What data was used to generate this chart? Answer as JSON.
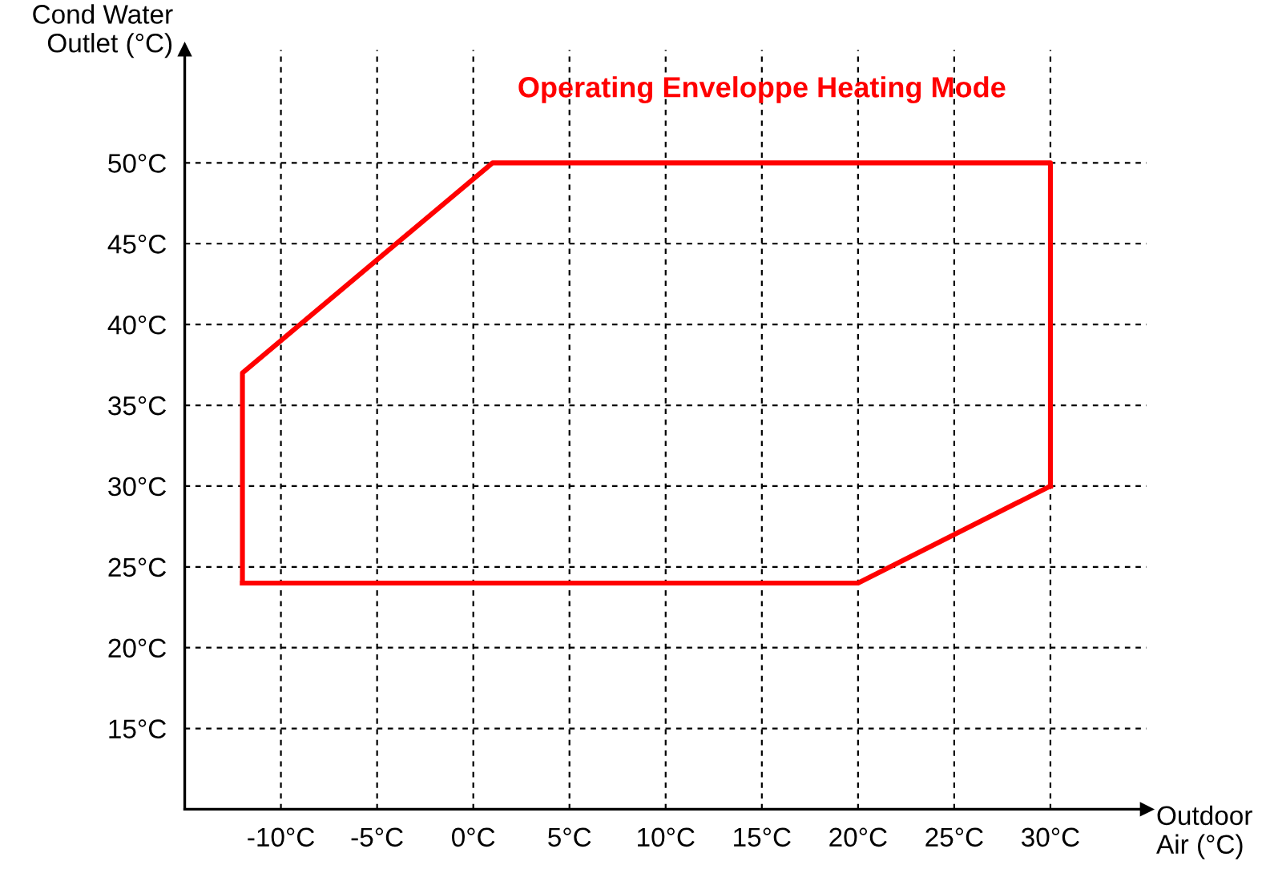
{
  "chart_data": {
    "type": "line",
    "title": "Operating Enveloppe Heating Mode",
    "xlabel": "Outdoor\nAir (°C)",
    "ylabel": "Cond Water\nOutlet (°C)",
    "series": [
      {
        "color": "#ff0000",
        "x": [
          -12,
          -12,
          1,
          30,
          30
        ],
        "values": [
          24,
          37,
          50,
          50,
          30
        ]
      },
      {
        "color": "#ff0000",
        "x": [
          -12,
          20,
          30
        ],
        "values": [
          24,
          24,
          30
        ]
      }
    ],
    "xlim": [
      -15,
      35
    ],
    "ylim": [
      10,
      57
    ],
    "xticks": [
      {
        "value": -10,
        "label": "-10°C"
      },
      {
        "value": -5,
        "label": "-5°C"
      },
      {
        "value": 0,
        "label": "0°C"
      },
      {
        "value": 5,
        "label": "5°C"
      },
      {
        "value": 10,
        "label": "10°C"
      },
      {
        "value": 15,
        "label": "15°C"
      },
      {
        "value": 20,
        "label": "20°C"
      },
      {
        "value": 25,
        "label": "25°C"
      },
      {
        "value": 30,
        "label": "30°C"
      }
    ],
    "yticks": [
      {
        "value": 15,
        "label": "15°C"
      },
      {
        "value": 20,
        "label": "20°C"
      },
      {
        "value": 25,
        "label": "25°C"
      },
      {
        "value": 30,
        "label": "30°C"
      },
      {
        "value": 35,
        "label": "35°C"
      },
      {
        "value": 40,
        "label": "40°C"
      },
      {
        "value": 45,
        "label": "45°C"
      },
      {
        "value": 50,
        "label": "50°C"
      }
    ],
    "grid": true,
    "line_style": "solid",
    "marker": "none"
  }
}
